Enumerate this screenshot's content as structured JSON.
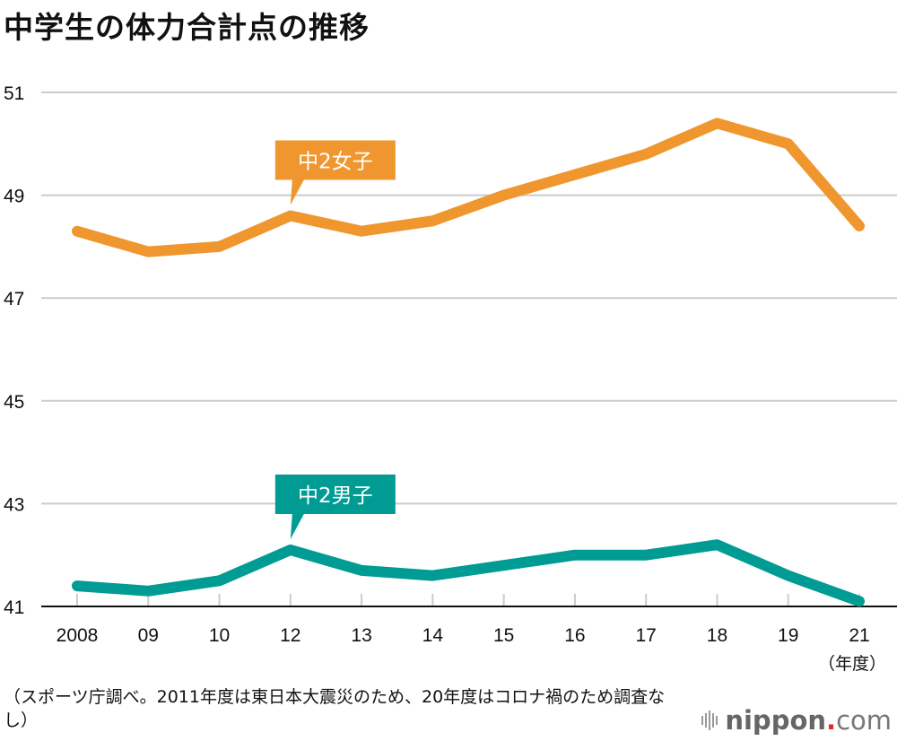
{
  "title": "中学生の体力合計点の推移",
  "note": "（スポーツ庁調べ。2011年度は東日本大震災のため、20年度はコロナ禍のため調査なし）",
  "logo": {
    "brand": "nippon",
    "dot": ".",
    "tld": "com"
  },
  "colors": {
    "girls": "#F0962E",
    "boys": "#009C94",
    "grid": "#CCCCCC",
    "axis": "#111111"
  },
  "chart_data": {
    "type": "line",
    "title": "中学生の体力合計点の推移",
    "xlabel": "（年度）",
    "ylabel": "",
    "categories": [
      "2008",
      "09",
      "10",
      "12",
      "13",
      "14",
      "15",
      "16",
      "17",
      "18",
      "19",
      "21"
    ],
    "ylim": [
      41,
      51
    ],
    "yticks": [
      41,
      43,
      45,
      47,
      49,
      51
    ],
    "grid": true,
    "series": [
      {
        "name": "中2女子",
        "color": "#F0962E",
        "values": [
          48.3,
          47.9,
          48.0,
          48.6,
          48.3,
          48.5,
          49.0,
          49.4,
          49.8,
          50.4,
          50.0,
          48.4
        ],
        "label_at": "12"
      },
      {
        "name": "中2男子",
        "color": "#009C94",
        "values": [
          41.4,
          41.3,
          41.5,
          42.1,
          41.7,
          41.6,
          41.8,
          42.0,
          42.0,
          42.2,
          41.6,
          41.1
        ],
        "label_at": "12"
      }
    ],
    "legend": "callouts"
  }
}
